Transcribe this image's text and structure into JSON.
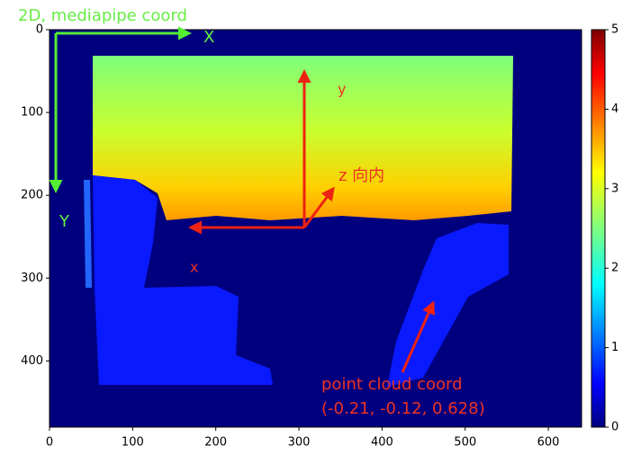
{
  "chart_data": {
    "type": "image",
    "xlim": [
      0,
      640
    ],
    "ylim": [
      480,
      0
    ],
    "xticks": [
      0,
      100,
      200,
      300,
      400,
      500,
      600
    ],
    "yticks": [
      0,
      100,
      200,
      300,
      400
    ],
    "colorbar": {
      "colormap": "jet",
      "lim": [
        0,
        5
      ],
      "ticks": [
        0,
        1,
        2,
        3,
        4,
        5
      ]
    },
    "annotations": [
      {
        "text": "2D, mediapipe coord",
        "color": "#66ee44"
      },
      {
        "text": "X",
        "color": "#66ee44"
      },
      {
        "text": "Y",
        "color": "#66ee44"
      },
      {
        "text": "y",
        "color": "#ee3322"
      },
      {
        "text": "z 向内",
        "color": "#ee3322"
      },
      {
        "text": "x",
        "color": "#ee3322"
      },
      {
        "text": "point cloud coord",
        "color": "#ee3322"
      },
      {
        "text": "(-0.21, -0.12, 0.628)",
        "color": "#ee3322"
      }
    ]
  }
}
